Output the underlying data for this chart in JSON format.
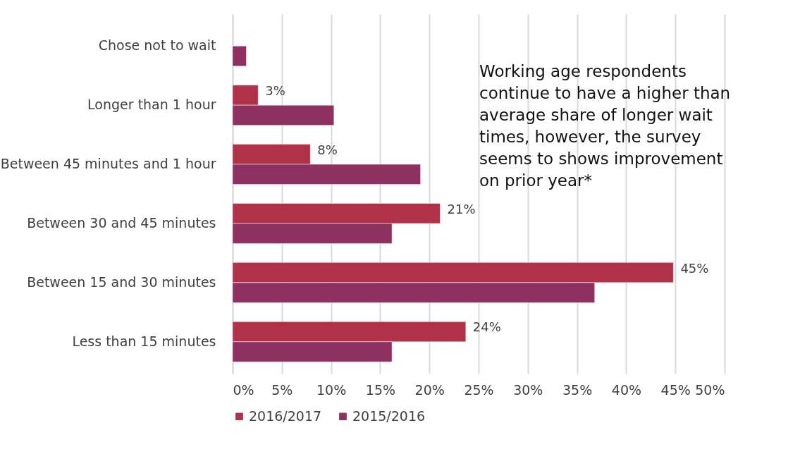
{
  "chart_data": {
    "type": "bar",
    "orientation": "horizontal",
    "categories": [
      "Chose not to wait",
      "Longer than 1 hour",
      "Between 45 minutes and 1 hour",
      "Between 30 and 45 minutes",
      "Between 15 and 30 minutes",
      "Less than 15 minutes"
    ],
    "series": [
      {
        "name": "2016/2017",
        "color": "#b03249",
        "values": [
          null,
          2.6,
          7.9,
          21.1,
          44.8,
          23.7
        ],
        "value_labels": [
          null,
          "3%",
          "8%",
          "21%",
          "45%",
          "24%"
        ]
      },
      {
        "name": "2015/2016",
        "color": "#8e3161",
        "values": [
          1.4,
          10.3,
          19.1,
          16.2,
          36.8,
          16.2
        ]
      }
    ],
    "xlim": [
      0,
      50
    ],
    "xticks": [
      {
        "value": 0,
        "label": "0%"
      },
      {
        "value": 5,
        "label": "5%"
      },
      {
        "value": 10,
        "label": "10%"
      },
      {
        "value": 15,
        "label": "15%"
      },
      {
        "value": 20,
        "label": "20%"
      },
      {
        "value": 25,
        "label": "25%"
      },
      {
        "value": 30,
        "label": "30%"
      },
      {
        "value": 35,
        "label": "35%"
      },
      {
        "value": 40,
        "label": "40%"
      },
      {
        "value": 45,
        "label": "45%"
      },
      {
        "value": 50,
        "label": "50%"
      }
    ],
    "grid": "x",
    "legend": "bottom",
    "annotations": [
      "Working age respondents continue to have a higher than average share of longer wait times, however, the survey seems to shows improvement on prior year*"
    ]
  }
}
